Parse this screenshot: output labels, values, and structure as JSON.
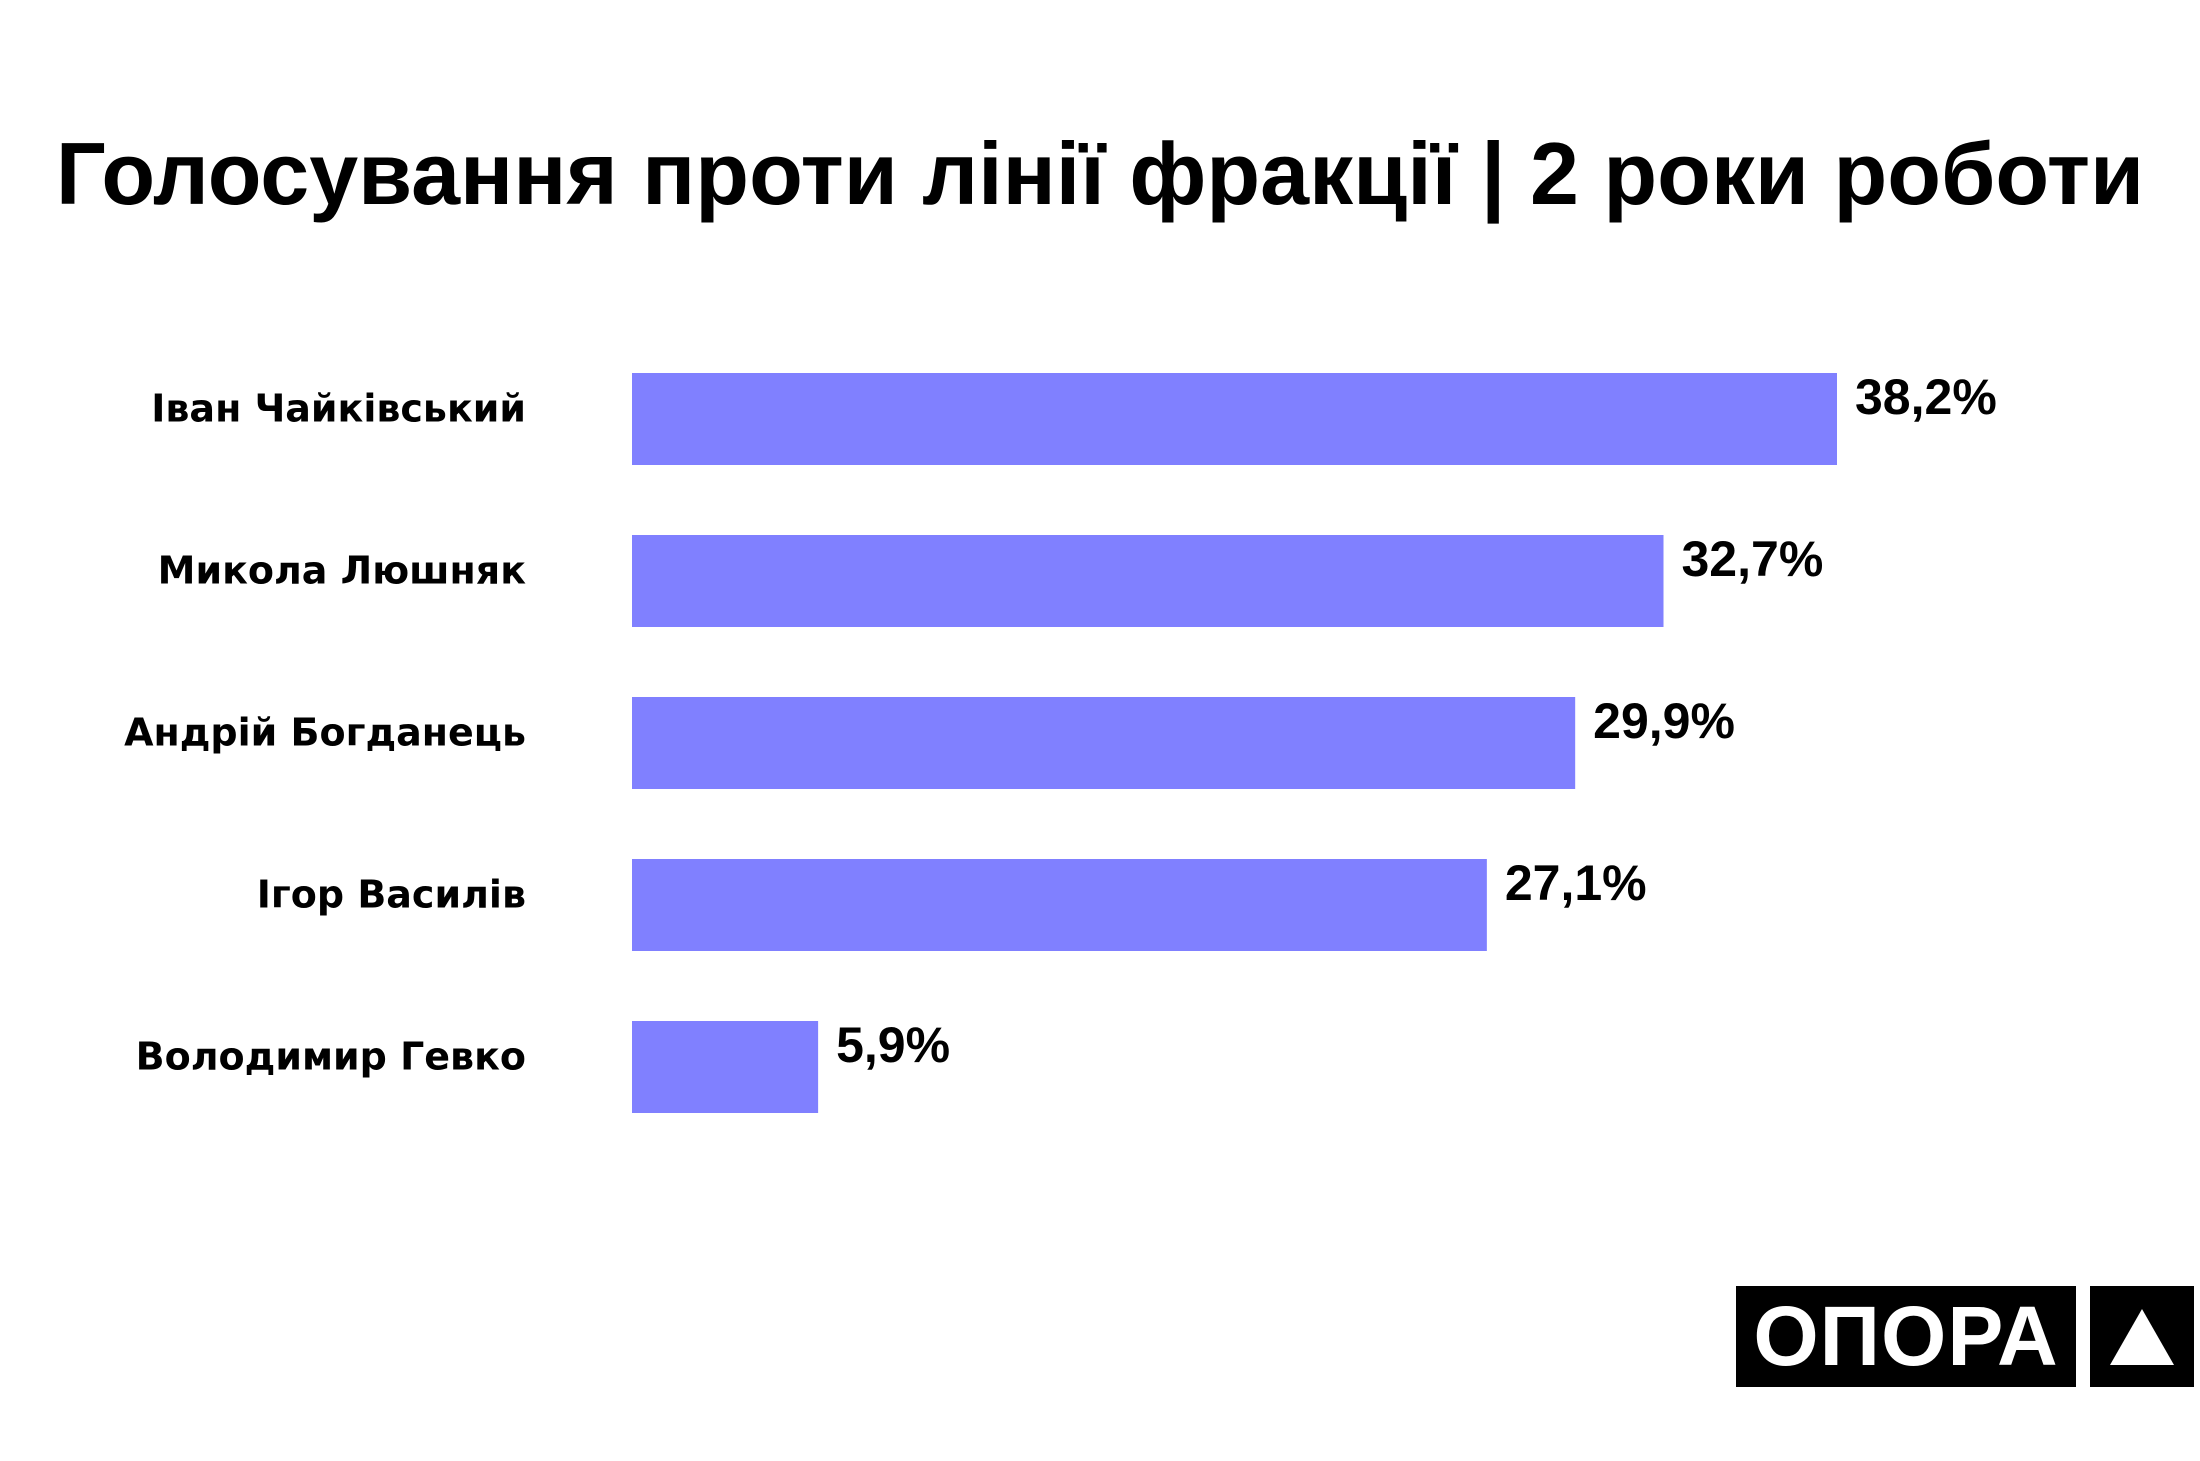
{
  "colors": {
    "bar": "#8080FF",
    "axis": "#000000",
    "text": "#000000",
    "background": "#FFFFFF"
  },
  "logo": {
    "text": "ОПОРА",
    "icon": "triangle-icon"
  },
  "chart_data": {
    "type": "bar",
    "orientation": "horizontal",
    "title": "Голосування проти лінії фракції | 2 роки роботи",
    "categories": [
      "Іван Чайківський",
      "Микола Люшняк",
      "Андрій Богданець",
      "Ігор Василів",
      "Володимир Гевко"
    ],
    "values": [
      38.2,
      32.7,
      29.9,
      27.1,
      5.9
    ],
    "value_labels": [
      "38,2%",
      "32,7%",
      "29,9%",
      "27,1%",
      "5,9%"
    ],
    "unit": "%",
    "xlim": [
      0,
      40
    ],
    "grid": false,
    "legend": "none"
  }
}
